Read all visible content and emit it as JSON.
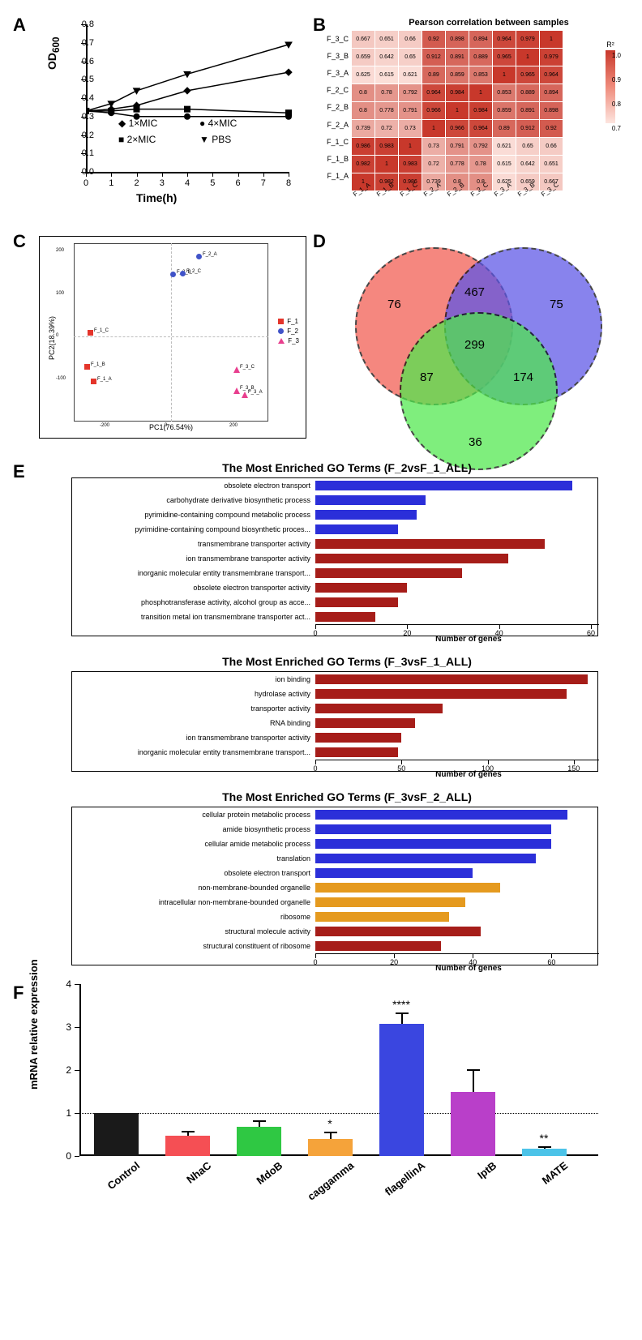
{
  "panels": {
    "A": "A",
    "B": "B",
    "C": "C",
    "D": "D",
    "E": "E",
    "F": "F"
  },
  "A": {
    "ylabel": "OD",
    "ysub": "600",
    "xlabel": "Time(h)",
    "xticks": [
      0,
      1,
      2,
      3,
      4,
      5,
      6,
      7,
      8
    ],
    "yticks": [
      "0.0",
      "0.1",
      "0.2",
      "0.3",
      "0.4",
      "0.5",
      "0.6",
      "0.7",
      "0.8"
    ],
    "legend": [
      "1×MIC",
      "4×MIC",
      "2×MIC",
      "PBS"
    ],
    "series": {
      "PBS": {
        "marker": "triangle-down",
        "pts": [
          [
            0,
            0.33
          ],
          [
            1,
            0.37
          ],
          [
            2,
            0.44
          ],
          [
            4,
            0.53
          ],
          [
            8,
            0.69
          ]
        ]
      },
      "1xMIC": {
        "marker": "diamond",
        "pts": [
          [
            0,
            0.33
          ],
          [
            1,
            0.34
          ],
          [
            2,
            0.36
          ],
          [
            4,
            0.44
          ],
          [
            8,
            0.54
          ]
        ]
      },
      "2xMIC": {
        "marker": "square",
        "pts": [
          [
            0,
            0.33
          ],
          [
            1,
            0.33
          ],
          [
            2,
            0.34
          ],
          [
            4,
            0.34
          ],
          [
            8,
            0.32
          ]
        ]
      },
      "4xMIC": {
        "marker": "circle",
        "pts": [
          [
            0,
            0.33
          ],
          [
            1,
            0.32
          ],
          [
            2,
            0.3
          ],
          [
            4,
            0.3
          ],
          [
            8,
            0.3
          ]
        ]
      }
    }
  },
  "B": {
    "title": "Pearson correlation between samples",
    "labels": [
      "F_1_A",
      "F_1_B",
      "F_1_C",
      "F_2_A",
      "F_2_B",
      "F_2_C",
      "F_3_A",
      "F_3_B",
      "F_3_C"
    ],
    "rows_top_to_bottom": [
      "F_3_C",
      "F_3_B",
      "F_3_A",
      "F_2_C",
      "F_2_B",
      "F_2_A",
      "F_1_C",
      "F_1_B",
      "F_1_A"
    ],
    "legend_title": "R²",
    "legend_ticks": [
      "1.0",
      "0.9",
      "0.8",
      "0.7"
    ],
    "color_min": "#fde5df",
    "color_max": "#c8382b",
    "matrix": {
      "F_3_C": [
        0.667,
        0.651,
        0.66,
        0.92,
        0.898,
        0.894,
        0.964,
        0.979,
        1
      ],
      "F_3_B": [
        0.659,
        0.642,
        0.65,
        0.912,
        0.891,
        0.889,
        0.965,
        1,
        0.979
      ],
      "F_3_A": [
        0.625,
        0.615,
        0.621,
        0.89,
        0.859,
        0.853,
        1,
        0.965,
        0.964
      ],
      "F_2_C": [
        0.8,
        0.78,
        0.792,
        0.964,
        0.984,
        1,
        0.853,
        0.889,
        0.894
      ],
      "F_2_B": [
        0.8,
        0.778,
        0.791,
        0.966,
        1,
        0.984,
        0.859,
        0.891,
        0.898
      ],
      "F_2_A": [
        0.739,
        0.72,
        0.73,
        1,
        0.966,
        0.964,
        0.89,
        0.912,
        0.92
      ],
      "F_1_C": [
        0.986,
        0.983,
        1,
        0.73,
        0.791,
        0.792,
        0.621,
        0.65,
        0.66
      ],
      "F_1_B": [
        0.982,
        1,
        0.983,
        0.72,
        0.778,
        0.78,
        0.615,
        0.642,
        0.651
      ],
      "F_1_A": [
        1,
        0.982,
        0.986,
        0.739,
        0.8,
        0.8,
        0.625,
        0.659,
        0.667
      ]
    }
  },
  "C": {
    "xlabel": "PC1(76.54%)",
    "ylabel": "PC2(18.39%)",
    "xlim": [
      -300,
      300
    ],
    "ylim": [
      -200,
      220
    ],
    "groups": {
      "F_1": {
        "shape": "sq",
        "color": "#e4352b",
        "pts": [
          [
            -250,
            10,
            "F_1_C"
          ],
          [
            -260,
            -70,
            "F_1_B"
          ],
          [
            -240,
            -105,
            "F_1_A"
          ]
        ]
      },
      "F_2": {
        "shape": "ci",
        "color": "#4053c8",
        "pts": [
          [
            5,
            148,
            "F_2_B"
          ],
          [
            35,
            150,
            "F_2_C"
          ],
          [
            85,
            190,
            "F_2_A"
          ]
        ]
      },
      "F_3": {
        "shape": "tr",
        "color": "#e83f8e",
        "pts": [
          [
            200,
            -75,
            "F_3_C"
          ],
          [
            200,
            -125,
            "F_3_B"
          ],
          [
            225,
            -135,
            "F_3_A"
          ]
        ]
      }
    },
    "legend": [
      "F_1",
      "F_2",
      "F_3"
    ]
  },
  "D": {
    "values": {
      "onlyR": 76,
      "onlyB": 75,
      "onlyG": 36,
      "RB": 467,
      "RG": 87,
      "BG": 174,
      "RGB": 299
    },
    "colors": {
      "R": "#f2594f",
      "B": "#5b54e7",
      "G": "#4ee84c"
    }
  },
  "E": {
    "xtitle": "Number of genes",
    "colors": {
      "bp": "#2b2fd9",
      "mf": "#a61d19",
      "cc": "#e59a1f"
    },
    "blocks": [
      {
        "title": "The Most Enriched GO Terms (F_2vsF_1_ALL)",
        "xmax": 60,
        "xticks": [
          0,
          20,
          40,
          60
        ],
        "bars": [
          {
            "label": "obsolete electron transport",
            "v": 56,
            "cat": "bp"
          },
          {
            "label": "carbohydrate derivative biosynthetic process",
            "v": 24,
            "cat": "bp"
          },
          {
            "label": "pyrimidine-containing compound metabolic process",
            "v": 22,
            "cat": "bp"
          },
          {
            "label": "pyrimidine-containing compound biosynthetic proces...",
            "v": 18,
            "cat": "bp"
          },
          {
            "label": "transmembrane transporter activity",
            "v": 50,
            "cat": "mf"
          },
          {
            "label": "ion transmembrane transporter activity",
            "v": 42,
            "cat": "mf"
          },
          {
            "label": "inorganic molecular entity transmembrane transport...",
            "v": 32,
            "cat": "mf"
          },
          {
            "label": "obsolete electron transporter activity",
            "v": 20,
            "cat": "mf"
          },
          {
            "label": "phosphotransferase activity, alcohol group as acce...",
            "v": 18,
            "cat": "mf"
          },
          {
            "label": "transition metal ion transmembrane transporter act...",
            "v": 13,
            "cat": "mf"
          }
        ]
      },
      {
        "title": "The Most Enriched GO Terms (F_3vsF_1_ALL)",
        "xmax": 160,
        "xticks": [
          0,
          50,
          100,
          150
        ],
        "bars": [
          {
            "label": "ion binding",
            "v": 158,
            "cat": "mf"
          },
          {
            "label": "hydrolase activity",
            "v": 146,
            "cat": "mf"
          },
          {
            "label": "transporter activity",
            "v": 74,
            "cat": "mf"
          },
          {
            "label": "RNA binding",
            "v": 58,
            "cat": "mf"
          },
          {
            "label": "ion transmembrane transporter activity",
            "v": 50,
            "cat": "mf"
          },
          {
            "label": "inorganic molecular entity transmembrane transport...",
            "v": 48,
            "cat": "mf"
          }
        ]
      },
      {
        "title": "The Most Enriched GO Terms (F_3vsF_2_ALL)",
        "xmax": 70,
        "xticks": [
          0,
          20,
          40,
          60
        ],
        "bars": [
          {
            "label": "cellular protein metabolic process",
            "v": 64,
            "cat": "bp"
          },
          {
            "label": "amide biosynthetic process",
            "v": 60,
            "cat": "bp"
          },
          {
            "label": "cellular amide metabolic process",
            "v": 60,
            "cat": "bp"
          },
          {
            "label": "translation",
            "v": 56,
            "cat": "bp"
          },
          {
            "label": "obsolete electron transport",
            "v": 40,
            "cat": "bp"
          },
          {
            "label": "non-membrane-bounded organelle",
            "v": 47,
            "cat": "cc"
          },
          {
            "label": "intracellular non-membrane-bounded organelle",
            "v": 38,
            "cat": "cc"
          },
          {
            "label": "ribosome",
            "v": 34,
            "cat": "cc"
          },
          {
            "label": "structural molecule activity",
            "v": 42,
            "cat": "mf"
          },
          {
            "label": "structural constituent of ribosome",
            "v": 32,
            "cat": "mf"
          }
        ]
      }
    ]
  },
  "F": {
    "ylabel": "mRNA relative expression",
    "ymax": 4,
    "yticks": [
      0,
      1,
      2,
      3,
      4
    ],
    "dash_y": 1,
    "bars": [
      {
        "label": "Control",
        "v": 1.0,
        "err": 0,
        "color": "#1a1a1a",
        "sig": ""
      },
      {
        "label": "NhaC",
        "v": 0.48,
        "err": 0.11,
        "color": "#f54f54",
        "sig": ""
      },
      {
        "label": "MdoB",
        "v": 0.68,
        "err": 0.16,
        "color": "#2fc843",
        "sig": ""
      },
      {
        "label": "caggamma",
        "v": 0.4,
        "err": 0.16,
        "color": "#f5a33a",
        "sig": "*"
      },
      {
        "label": "flagellinA",
        "v": 3.07,
        "err": 0.27,
        "color": "#3a46e0",
        "sig": "****"
      },
      {
        "label": "IptB",
        "v": 1.5,
        "err": 0.51,
        "color": "#b93fc9",
        "sig": ""
      },
      {
        "label": "MATE",
        "v": 0.17,
        "err": 0.06,
        "color": "#4cc3e8",
        "sig": "**"
      }
    ]
  }
}
